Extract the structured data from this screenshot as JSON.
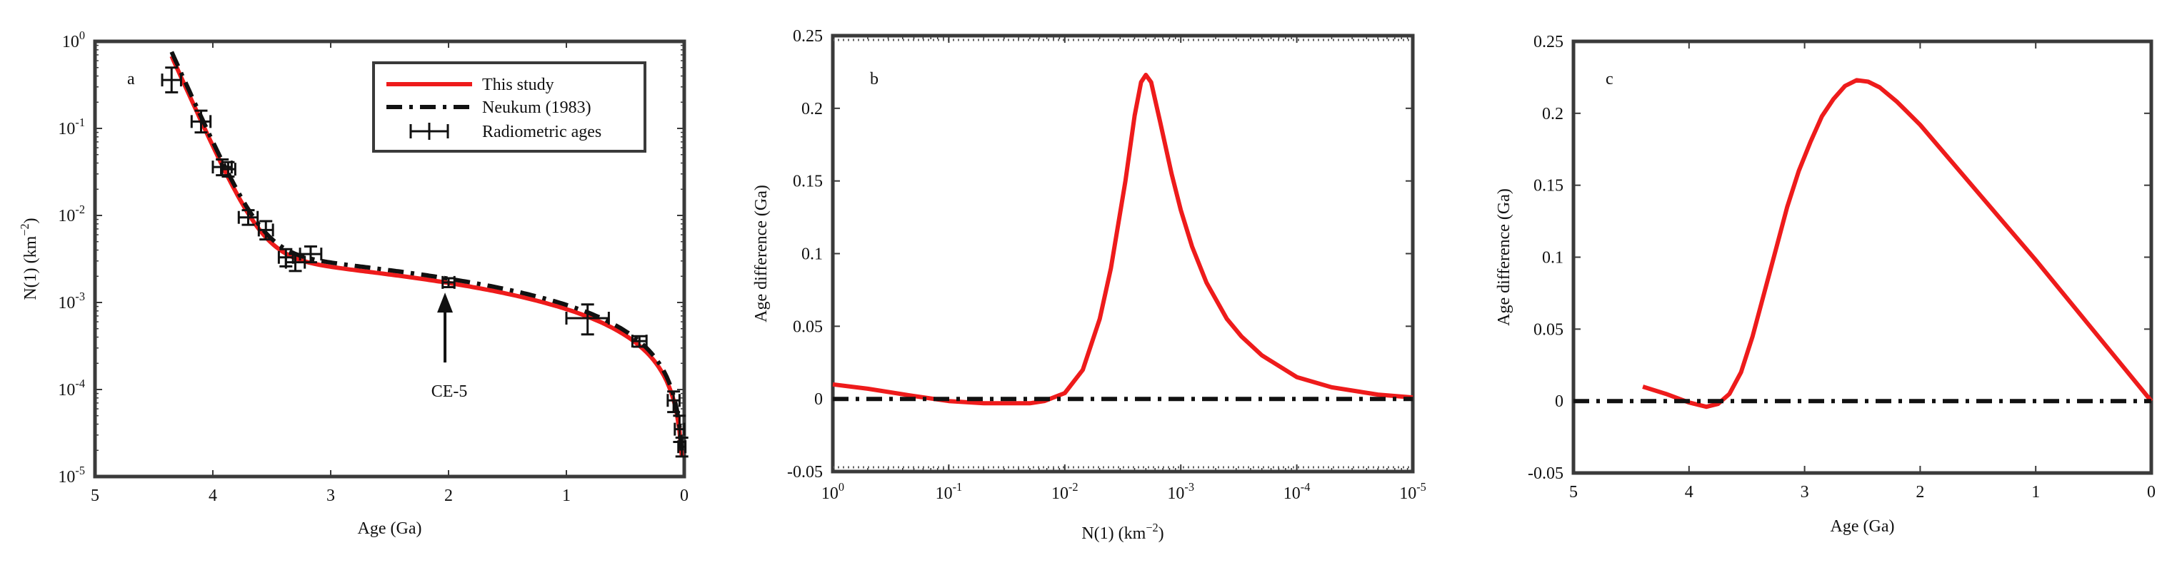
{
  "colors": {
    "this_study": "#ee1b1b",
    "neukum": "#111111",
    "axes": "#3a3a3a",
    "text": "#111111"
  },
  "chart_data": [
    {
      "panel": "a",
      "type": "line",
      "xlabel": "Age (Ga)",
      "ylabel_base": "N(1) (km",
      "ylabel_sup": "−2",
      "ylabel_close": ")",
      "x_scale": "linear",
      "x_reversed": true,
      "xlim": [
        5,
        0
      ],
      "x_ticks": [
        5,
        4,
        3,
        2,
        1,
        0
      ],
      "y_scale": "log",
      "ylim": [
        1e-05,
        1
      ],
      "y_ticks": [
        {
          "base": "10",
          "exp": "-5",
          "value": 1e-05
        },
        {
          "base": "10",
          "exp": "-4",
          "value": 0.0001
        },
        {
          "base": "10",
          "exp": "-3",
          "value": 0.001
        },
        {
          "base": "10",
          "exp": "-2",
          "value": 0.01
        },
        {
          "base": "10",
          "exp": "-1",
          "value": 0.1
        },
        {
          "base": "10",
          "exp": "0",
          "value": 1
        }
      ],
      "legend": {
        "position": "top-right",
        "entries": [
          "This study",
          "Neukum (1983)",
          "Radiometric ages"
        ]
      },
      "annotation": {
        "text": "CE-5",
        "points_to": {
          "x": 2.03,
          "y": 0.00135
        }
      },
      "series": [
        {
          "name": "This study",
          "style": "solid",
          "color": "#ee1b1b",
          "function": "crater_chronology",
          "coefficients": {
            "a": 5.44e-14,
            "b": 6.93,
            "c": 0.000838
          }
        },
        {
          "name": "Neukum (1983)",
          "style": "dash-dot",
          "color": "#111111",
          "function": "crater_chronology",
          "coefficients": {
            "a": 5.44e-14,
            "b": 6.93,
            "c": 0.000838
          }
        }
      ],
      "x_range": [
        4.35,
        0.02
      ],
      "radiometric_ages": [
        {
          "x": 4.35,
          "y": 0.36,
          "xerr": 0.08,
          "yerr": [
            0.26,
            0.5
          ]
        },
        {
          "x": 4.1,
          "y": 0.12,
          "xerr": 0.08,
          "yerr": [
            0.09,
            0.16
          ]
        },
        {
          "x": 3.92,
          "y": 0.036,
          "xerr": 0.08,
          "yerr": [
            0.029,
            0.044
          ]
        },
        {
          "x": 3.87,
          "y": 0.034,
          "xerr": 0.06,
          "yerr": [
            0.028,
            0.041
          ]
        },
        {
          "x": 3.7,
          "y": 0.0095,
          "xerr": 0.08,
          "yerr": [
            0.0078,
            0.0115
          ]
        },
        {
          "x": 3.55,
          "y": 0.0068,
          "xerr": 0.06,
          "yerr": [
            0.0053,
            0.0086
          ]
        },
        {
          "x": 3.38,
          "y": 0.0033,
          "xerr": 0.06,
          "yerr": [
            0.0026,
            0.0041
          ]
        },
        {
          "x": 3.3,
          "y": 0.0029,
          "xerr": 0.08,
          "yerr": [
            0.0023,
            0.0036
          ]
        },
        {
          "x": 3.17,
          "y": 0.0036,
          "xerr": 0.09,
          "yerr": [
            0.0029,
            0.0044
          ]
        },
        {
          "x": 2.0,
          "y": 0.0017,
          "xerr": 0.05,
          "yerr": [
            0.0015,
            0.0019
          ]
        },
        {
          "x": 0.82,
          "y": 0.00066,
          "xerr": 0.18,
          "yerr": [
            0.00043,
            0.00095
          ]
        },
        {
          "x": 0.38,
          "y": 0.00036,
          "xerr": 0.06,
          "yerr": [
            0.00031,
            0.00041
          ]
        },
        {
          "x": 0.09,
          "y": 7.5e-05,
          "xerr": 0.05,
          "yerr": [
            5.5e-05,
            9.5e-05
          ]
        },
        {
          "x": 0.04,
          "y": 3.5e-05,
          "xerr": 0.04,
          "yerr": [
            2.5e-05,
            5e-05
          ]
        },
        {
          "x": 0.02,
          "y": 2.2e-05,
          "xerr": 0.03,
          "yerr": [
            1.7e-05,
            2.8e-05
          ]
        }
      ]
    },
    {
      "panel": "b",
      "type": "line",
      "xlabel_base": "N(1) (km",
      "xlabel_sup": "−2",
      "xlabel_close": ")",
      "ylabel": "Age difference (Ga)",
      "x_scale": "log",
      "x_reversed": true,
      "xlim": [
        1,
        1e-05
      ],
      "x_ticks": [
        {
          "base": "10",
          "exp": "0",
          "value": 1
        },
        {
          "base": "10",
          "exp": "-1",
          "value": 0.1
        },
        {
          "base": "10",
          "exp": "-2",
          "value": 0.01
        },
        {
          "base": "10",
          "exp": "-3",
          "value": 0.001
        },
        {
          "base": "10",
          "exp": "-4",
          "value": 0.0001
        },
        {
          "base": "10",
          "exp": "-5",
          "value": 1e-05
        }
      ],
      "y_scale": "linear",
      "ylim": [
        -0.05,
        0.25
      ],
      "y_ticks": [
        -0.05,
        0,
        0.05,
        0.1,
        0.15,
        0.2,
        0.25
      ],
      "series": [
        {
          "name": "This study",
          "style": "solid",
          "color": "#ee1b1b",
          "x": [
            1,
            0.5,
            0.2,
            0.1,
            0.05,
            0.02,
            0.015,
            0.01,
            0.007,
            0.005,
            0.004,
            0.003,
            0.0025,
            0.0022,
            0.002,
            0.0018,
            0.0015,
            0.0012,
            0.001,
            0.0008,
            0.0006,
            0.0004,
            0.0003,
            0.0002,
            0.0001,
            5e-05,
            2e-05,
            1e-05
          ],
          "y": [
            0.01,
            0.007,
            0.002,
            -0.0015,
            -0.003,
            -0.003,
            -0.0015,
            0.004,
            0.02,
            0.055,
            0.09,
            0.15,
            0.195,
            0.218,
            0.223,
            0.218,
            0.19,
            0.155,
            0.13,
            0.105,
            0.08,
            0.055,
            0.043,
            0.03,
            0.015,
            0.008,
            0.003,
            0.001
          ]
        },
        {
          "name": "Neukum (1983)",
          "style": "dash-dot",
          "color": "#111111",
          "x": [
            1,
            1e-05
          ],
          "y": [
            0,
            0
          ]
        }
      ]
    },
    {
      "panel": "c",
      "type": "line",
      "xlabel": "Age (Ga)",
      "ylabel": "Age difference (Ga)",
      "x_scale": "linear",
      "x_reversed": true,
      "xlim": [
        5,
        0
      ],
      "x_ticks": [
        5,
        4,
        3,
        2,
        1,
        0
      ],
      "y_scale": "linear",
      "ylim": [
        -0.05,
        0.25
      ],
      "y_ticks": [
        -0.05,
        0,
        0.05,
        0.1,
        0.15,
        0.2,
        0.25
      ],
      "series": [
        {
          "name": "This study",
          "style": "solid",
          "color": "#ee1b1b",
          "x": [
            4.4,
            4.2,
            4.0,
            3.85,
            3.75,
            3.65,
            3.55,
            3.45,
            3.35,
            3.25,
            3.15,
            3.05,
            2.95,
            2.85,
            2.75,
            2.65,
            2.55,
            2.45,
            2.35,
            2.2,
            2.0,
            1.5,
            1.0,
            0.5,
            0.0
          ],
          "y": [
            0.01,
            0.005,
            -0.001,
            -0.004,
            -0.002,
            0.005,
            0.02,
            0.045,
            0.075,
            0.105,
            0.135,
            0.16,
            0.18,
            0.198,
            0.21,
            0.219,
            0.223,
            0.222,
            0.218,
            0.208,
            0.192,
            0.145,
            0.098,
            0.049,
            0.0
          ]
        },
        {
          "name": "Neukum (1983)",
          "style": "dash-dot",
          "color": "#111111",
          "x": [
            5,
            0
          ],
          "y": [
            0,
            0
          ]
        }
      ]
    }
  ]
}
